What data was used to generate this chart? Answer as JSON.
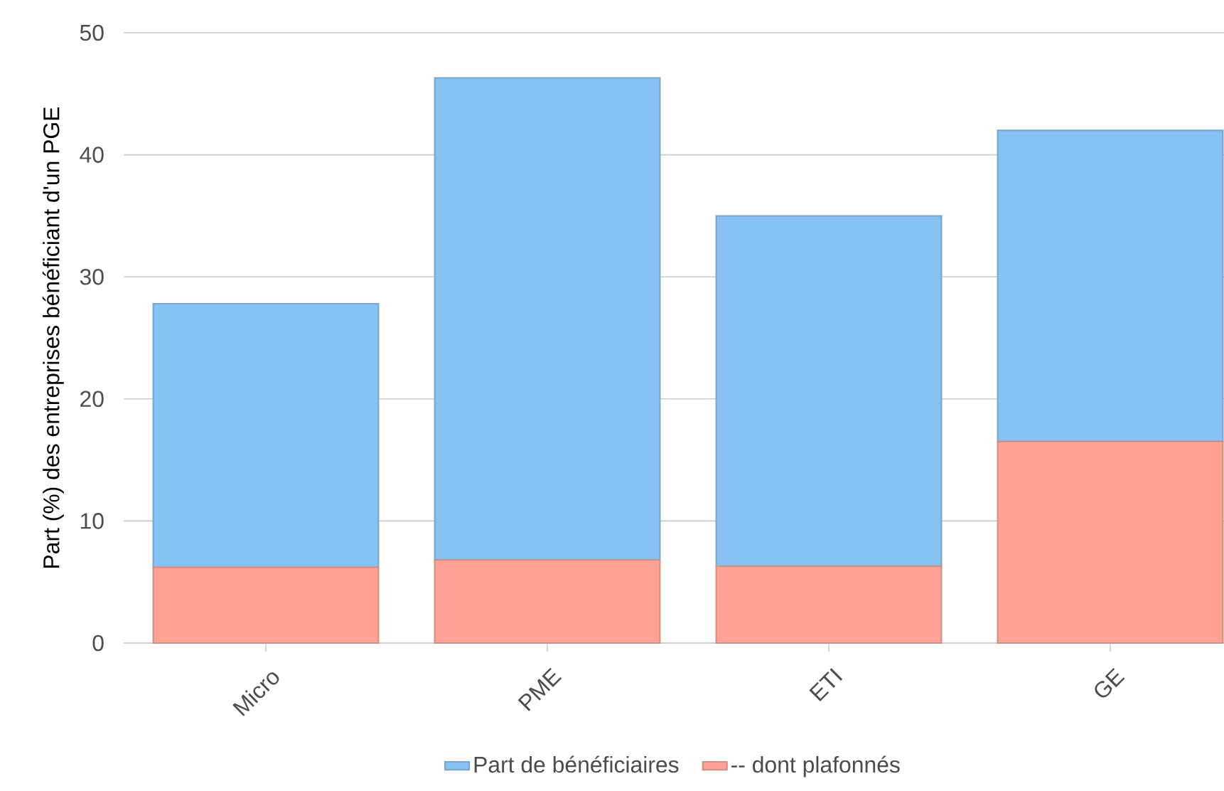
{
  "chart_data": {
    "type": "bar",
    "ylabel": "Part (%) des entreprises bénéficiant d'un PGE",
    "categories": [
      "Micro",
      "PME",
      "ETI",
      "GE"
    ],
    "stacked": true,
    "series": [
      {
        "name": "-- dont plafonnés",
        "color": "#fda294",
        "values": [
          6.2,
          6.8,
          6.3,
          16.5
        ]
      },
      {
        "name": "Part de bénéficiaires",
        "color": "#86c1f3",
        "values": [
          21.6,
          39.5,
          28.7,
          25.5
        ]
      }
    ],
    "ylim": [
      0,
      50
    ],
    "yticks": [
      0,
      10,
      20,
      30,
      40,
      50
    ],
    "grid": "y",
    "legend": "bottom"
  }
}
